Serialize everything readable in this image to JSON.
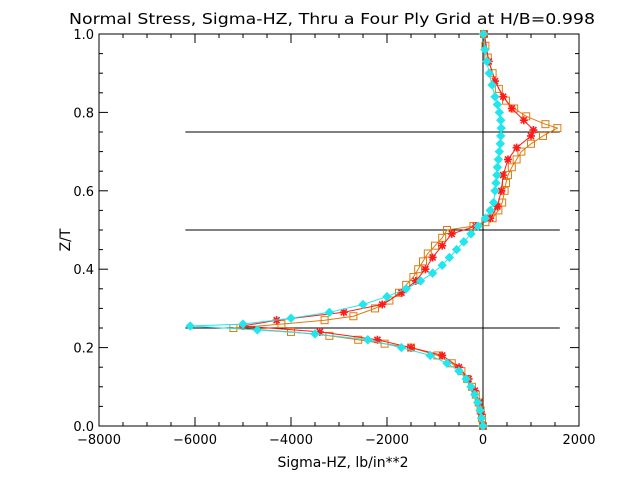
{
  "chart_data": {
    "type": "scatter",
    "title": "Normal Stress, Sigma-HZ, Thru a Four Ply Grid at H/B=0.998",
    "xlabel": "Sigma-HZ,  lb/in**2",
    "ylabel": "Z/T",
    "xlim": [
      -8000,
      2000
    ],
    "ylim": [
      0.0,
      1.0
    ],
    "x_ticks": [
      "−8000",
      "−6000",
      "−4000",
      "−2000",
      "0",
      "2000"
    ],
    "x_tick_values": [
      -8000,
      -6000,
      -4000,
      -2000,
      0,
      2000
    ],
    "y_ticks": [
      "0.0",
      "0.2",
      "0.4",
      "0.6",
      "0.8",
      "1.0"
    ],
    "y_tick_values": [
      0.0,
      0.2,
      0.4,
      0.6,
      0.8,
      1.0
    ],
    "grid": false,
    "legend": "none",
    "ply_interfaces": [
      {
        "z": 0.25,
        "x_from": -6200,
        "x_to": 1600
      },
      {
        "z": 0.5,
        "x_from": -6200,
        "x_to": 1600
      },
      {
        "z": 0.75,
        "x_from": -6200,
        "x_to": 1600
      }
    ],
    "zero_line_x": 0,
    "series": [
      {
        "marker": "square",
        "color": "#e07a10",
        "points": [
          [
            0,
            0.0
          ],
          [
            -20,
            0.02
          ],
          [
            -50,
            0.04
          ],
          [
            -90,
            0.06
          ],
          [
            -150,
            0.08
          ],
          [
            -230,
            0.1
          ],
          [
            -330,
            0.12
          ],
          [
            -450,
            0.14
          ],
          [
            -650,
            0.16
          ],
          [
            -950,
            0.18
          ],
          [
            -1500,
            0.2
          ],
          [
            -2050,
            0.21
          ],
          [
            -2600,
            0.22
          ],
          [
            -3200,
            0.23
          ],
          [
            -4000,
            0.24
          ],
          [
            -5200,
            0.25
          ],
          [
            -4200,
            0.26
          ],
          [
            -3300,
            0.27
          ],
          [
            -2700,
            0.28
          ],
          [
            -2250,
            0.3
          ],
          [
            -1950,
            0.32
          ],
          [
            -1750,
            0.34
          ],
          [
            -1600,
            0.36
          ],
          [
            -1450,
            0.38
          ],
          [
            -1350,
            0.4
          ],
          [
            -1250,
            0.42
          ],
          [
            -1150,
            0.44
          ],
          [
            -1000,
            0.46
          ],
          [
            -850,
            0.48
          ],
          [
            -750,
            0.5
          ],
          [
            -200,
            0.51
          ],
          [
            50,
            0.52
          ],
          [
            200,
            0.53
          ],
          [
            320,
            0.55
          ],
          [
            400,
            0.57
          ],
          [
            450,
            0.6
          ],
          [
            480,
            0.62
          ],
          [
            520,
            0.64
          ],
          [
            600,
            0.66
          ],
          [
            700,
            0.68
          ],
          [
            800,
            0.7
          ],
          [
            1000,
            0.72
          ],
          [
            1250,
            0.74
          ],
          [
            1550,
            0.76
          ],
          [
            1300,
            0.77
          ],
          [
            900,
            0.79
          ],
          [
            650,
            0.81
          ],
          [
            480,
            0.83
          ],
          [
            330,
            0.86
          ],
          [
            200,
            0.9
          ],
          [
            100,
            0.94
          ],
          [
            50,
            0.97
          ],
          [
            20,
            1.0
          ]
        ]
      },
      {
        "marker": "asterisk",
        "color": "#ff1a1a",
        "points": [
          [
            0,
            0.0
          ],
          [
            -30,
            0.03
          ],
          [
            -80,
            0.06
          ],
          [
            -170,
            0.09
          ],
          [
            -300,
            0.12
          ],
          [
            -500,
            0.15
          ],
          [
            -850,
            0.18
          ],
          [
            -1500,
            0.2
          ],
          [
            -2200,
            0.22
          ],
          [
            -3400,
            0.24
          ],
          [
            -5000,
            0.255
          ],
          [
            -4300,
            0.27
          ],
          [
            -2900,
            0.29
          ],
          [
            -2100,
            0.31
          ],
          [
            -1700,
            0.34
          ],
          [
            -1400,
            0.37
          ],
          [
            -1200,
            0.4
          ],
          [
            -1050,
            0.43
          ],
          [
            -850,
            0.46
          ],
          [
            -650,
            0.49
          ],
          [
            -150,
            0.51
          ],
          [
            150,
            0.53
          ],
          [
            300,
            0.56
          ],
          [
            380,
            0.6
          ],
          [
            420,
            0.64
          ],
          [
            520,
            0.68
          ],
          [
            700,
            0.71
          ],
          [
            1000,
            0.74
          ],
          [
            1050,
            0.755
          ],
          [
            850,
            0.78
          ],
          [
            600,
            0.81
          ],
          [
            420,
            0.84
          ],
          [
            250,
            0.88
          ],
          [
            120,
            0.93
          ],
          [
            30,
            1.0
          ]
        ]
      },
      {
        "marker": "diamond",
        "color": "#22e6ec",
        "points": [
          [
            0,
            0.0
          ],
          [
            -30,
            0.02
          ],
          [
            -60,
            0.04
          ],
          [
            -110,
            0.06
          ],
          [
            -170,
            0.08
          ],
          [
            -250,
            0.1
          ],
          [
            -350,
            0.12
          ],
          [
            -500,
            0.14
          ],
          [
            -750,
            0.16
          ],
          [
            -1100,
            0.18
          ],
          [
            -1700,
            0.2
          ],
          [
            -2400,
            0.22
          ],
          [
            -3500,
            0.235
          ],
          [
            -4700,
            0.245
          ],
          [
            -6100,
            0.255
          ],
          [
            -5000,
            0.26
          ],
          [
            -4000,
            0.275
          ],
          [
            -3200,
            0.29
          ],
          [
            -2500,
            0.31
          ],
          [
            -2000,
            0.33
          ],
          [
            -1600,
            0.35
          ],
          [
            -1300,
            0.37
          ],
          [
            -1050,
            0.39
          ],
          [
            -850,
            0.41
          ],
          [
            -700,
            0.43
          ],
          [
            -550,
            0.45
          ],
          [
            -400,
            0.47
          ],
          [
            -250,
            0.49
          ],
          [
            -100,
            0.51
          ],
          [
            50,
            0.53
          ],
          [
            150,
            0.55
          ],
          [
            220,
            0.57
          ],
          [
            250,
            0.6
          ],
          [
            270,
            0.62
          ],
          [
            290,
            0.64
          ],
          [
            300,
            0.66
          ],
          [
            320,
            0.68
          ],
          [
            340,
            0.7
          ],
          [
            360,
            0.72
          ],
          [
            370,
            0.74
          ],
          [
            380,
            0.76
          ],
          [
            370,
            0.78
          ],
          [
            340,
            0.8
          ],
          [
            300,
            0.82
          ],
          [
            250,
            0.84
          ],
          [
            190,
            0.87
          ],
          [
            130,
            0.9
          ],
          [
            80,
            0.93
          ],
          [
            40,
            0.96
          ],
          [
            10,
            1.0
          ]
        ]
      }
    ]
  }
}
